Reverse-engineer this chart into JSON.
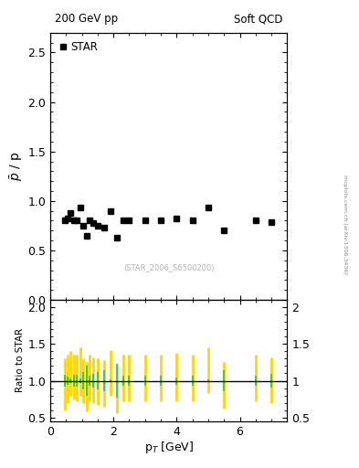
{
  "title_left": "200 GeV pp",
  "title_right": "Soft QCD",
  "ylabel_main": "$\\bar{p}$ / p",
  "ylabel_ratio": "Ratio to STAR",
  "xlabel": "p$_{T}$ [GeV]",
  "watermark": "(STAR_2006_S6500200)",
  "arxiv_text": "mcplots.cern.ch [arXiv:1306.3436]",
  "legend_label": "STAR",
  "ylim_main": [
    0.0,
    2.7
  ],
  "ylim_ratio": [
    0.45,
    2.1
  ],
  "star_x": [
    0.45,
    0.55,
    0.65,
    0.75,
    0.85,
    0.95,
    1.05,
    1.15,
    1.25,
    1.35,
    1.5,
    1.7,
    1.9,
    2.1,
    2.3,
    2.5,
    3.0,
    3.5,
    4.0,
    4.5,
    5.0,
    5.5,
    6.5,
    7.0
  ],
  "star_y": [
    0.8,
    0.82,
    0.88,
    0.8,
    0.8,
    0.93,
    0.75,
    0.65,
    0.8,
    0.78,
    0.75,
    0.73,
    0.9,
    0.63,
    0.8,
    0.8,
    0.8,
    0.8,
    0.82,
    0.8,
    0.93,
    0.7,
    0.8,
    0.79
  ],
  "ratio_yellow_x": [
    0.45,
    0.55,
    0.65,
    0.75,
    0.85,
    0.95,
    1.05,
    1.15,
    1.25,
    1.35,
    1.5,
    1.7,
    1.9,
    2.1,
    2.3,
    2.5,
    3.0,
    3.5,
    4.0,
    4.5,
    5.0,
    5.5,
    6.5,
    7.0
  ],
  "ratio_yellow_lo": [
    0.6,
    0.7,
    0.8,
    0.75,
    0.72,
    0.8,
    0.7,
    0.58,
    0.72,
    0.7,
    0.67,
    0.65,
    0.8,
    0.56,
    0.72,
    0.72,
    0.72,
    0.72,
    0.72,
    0.72,
    0.83,
    0.62,
    0.72,
    0.7
  ],
  "ratio_yellow_hi": [
    1.3,
    1.35,
    1.4,
    1.35,
    1.35,
    1.45,
    1.3,
    1.25,
    1.35,
    1.32,
    1.3,
    1.28,
    1.42,
    1.2,
    1.35,
    1.35,
    1.35,
    1.35,
    1.38,
    1.35,
    1.45,
    1.25,
    1.35,
    1.32
  ],
  "ratio_green_x": [
    0.45,
    0.55,
    0.65,
    0.75,
    0.85,
    0.95,
    1.05,
    1.15,
    1.25,
    1.35,
    1.5,
    1.7,
    1.9,
    2.1,
    2.3,
    2.5,
    3.0,
    3.5,
    4.0,
    4.5,
    5.0,
    5.5,
    6.5,
    7.0
  ],
  "ratio_green_lo": [
    0.92,
    0.94,
    0.97,
    0.92,
    0.92,
    0.97,
    0.88,
    0.8,
    0.93,
    0.91,
    0.88,
    0.86,
    0.98,
    0.77,
    0.93,
    0.93,
    0.93,
    0.93,
    0.95,
    0.93,
    0.98,
    0.86,
    0.93,
    0.91
  ],
  "ratio_green_hi": [
    1.08,
    1.06,
    1.03,
    1.08,
    1.08,
    1.03,
    1.12,
    1.2,
    1.07,
    1.09,
    1.12,
    1.14,
    1.02,
    1.23,
    1.07,
    1.07,
    1.07,
    1.07,
    1.05,
    1.07,
    1.02,
    1.14,
    1.07,
    1.09
  ],
  "marker": "s",
  "marker_color": "black",
  "marker_size": 4,
  "background_color": "white",
  "line_color": "black"
}
